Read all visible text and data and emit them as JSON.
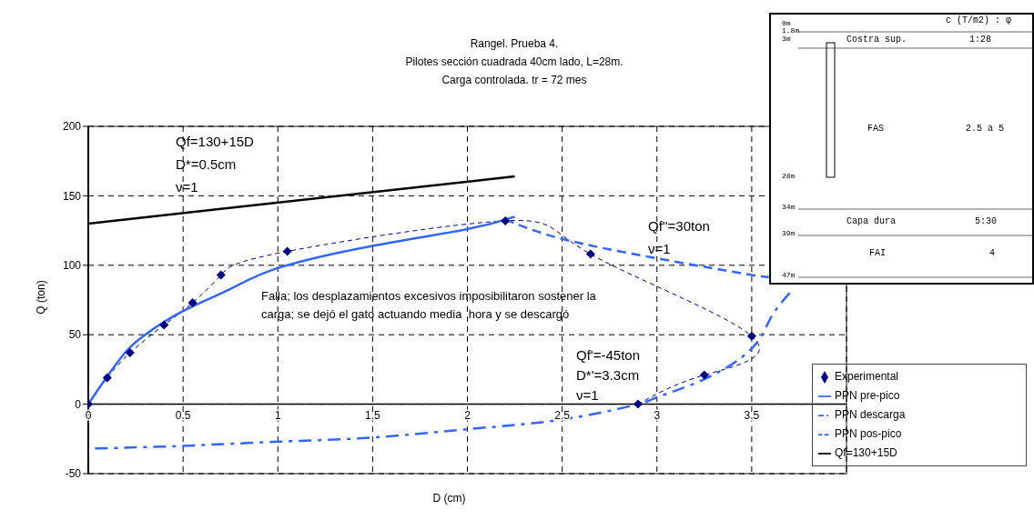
{
  "chart_data": [
    {
      "type": "line",
      "title": "Rangel. Prueba 4.\nPilotes sección cuadrada 40cm lado, L=28m.\nCarga controlada. tr = 72 mes",
      "xlabel": "D (cm)",
      "ylabel": "Q (ton)",
      "xlim": [
        0,
        4
      ],
      "xticks": [
        0,
        0.5,
        1,
        1.5,
        2,
        2.5,
        3,
        3.5
      ],
      "ylim": [
        -50,
        200
      ],
      "yticks": [
        -50,
        0,
        50,
        100,
        150,
        200
      ],
      "grid": true,
      "legend": "bottom right",
      "series": [
        {
          "name": "Experimental",
          "color": "#000080",
          "line_style": "dashed",
          "marker": "diamond",
          "x": [
            0,
            0.1,
            0.22,
            0.4,
            0.55,
            0.7,
            1.05,
            2.2,
            2.65,
            3.5,
            3.25,
            2.9
          ],
          "values": [
            0,
            19,
            37,
            57,
            73,
            93,
            110,
            132,
            108,
            49,
            21,
            0
          ]
        },
        {
          "name": "PPN pre-pico",
          "color": "#3366ff",
          "line_style": "solid",
          "marker": "none",
          "x": [
            0,
            0.1,
            0.2,
            0.3,
            0.5,
            0.75,
            1,
            1.5,
            2,
            2.25
          ],
          "values": [
            0,
            20,
            38,
            50,
            67,
            83,
            98,
            114,
            126,
            135
          ]
        },
        {
          "name": "PPN descarga",
          "color": "#3366ff",
          "line_style": "dashdot",
          "marker": "none",
          "x": [
            3.7,
            3.6,
            3.5,
            3.25,
            3,
            2.9,
            2.5,
            2,
            1.5,
            1,
            0.5,
            0
          ],
          "values": [
            80,
            62,
            40,
            18,
            5,
            0,
            -11,
            -18,
            -24,
            -27,
            -30,
            -32
          ]
        },
        {
          "name": "PPN pos-pico",
          "color": "#3366ff",
          "line_style": "dashed",
          "marker": "none",
          "x": [
            2.2,
            2.5,
            3,
            3.5,
            3.58
          ],
          "values": [
            133,
            119,
            105,
            93,
            92
          ]
        },
        {
          "name": "Qf=130+15D",
          "color": "#000000",
          "line_style": "solid",
          "marker": "none",
          "x": [
            0,
            2.25
          ],
          "values": [
            130,
            164
          ]
        }
      ],
      "annotations": [
        "Qf=130+15D\nD*=0.5cm\nν=1",
        "Qf''=30ton\nν=1",
        "Falla; los desplazamientos excesivos imposibilitaron sostener la\ncarga; se dejó el gato actuando media  hora y se descargó",
        "Qf'=-45ton\nD*'=3.3cm\nν=1"
      ]
    },
    {
      "type": "other",
      "annotations": [
        "c (T/m2) : φ",
        "0m",
        "1.8m",
        "3m",
        "28m",
        "34m",
        "39m",
        "47m",
        "Costra sup.",
        "1:28",
        "FAS",
        "2.5 a 5",
        "Capa dura",
        "5:30",
        "FAI",
        "4"
      ]
    }
  ]
}
